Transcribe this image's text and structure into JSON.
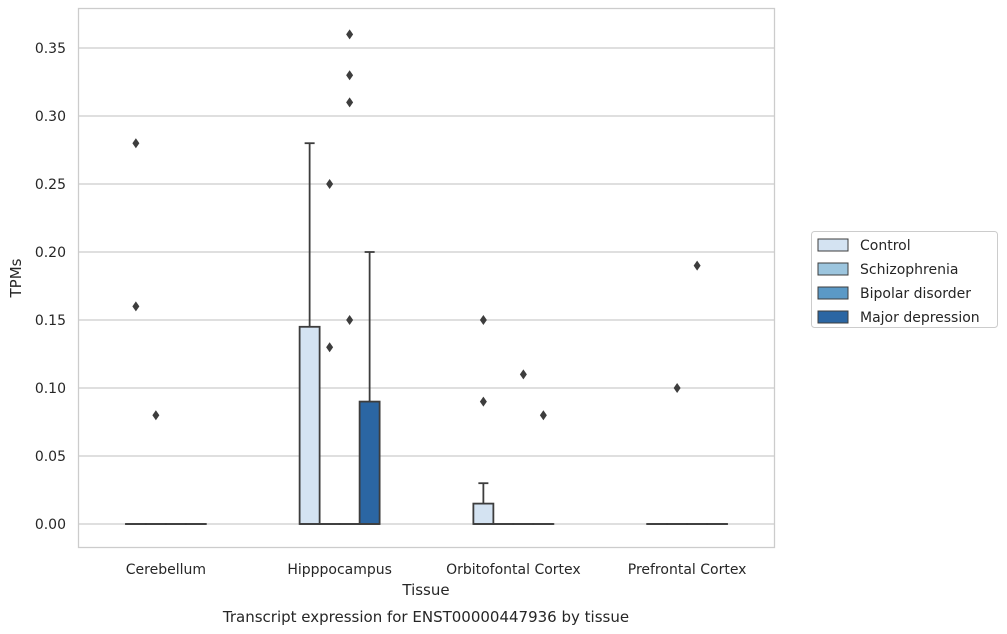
{
  "chart_data": {
    "type": "box",
    "title": "Transcript expression for ENST00000447936 by tissue",
    "xlabel": "Tissue",
    "ylabel": "TPMs",
    "ylim": [
      -0.017,
      0.378
    ],
    "yticks": [
      "0.00",
      "0.05",
      "0.10",
      "0.15",
      "0.20",
      "0.25",
      "0.30",
      "0.35"
    ],
    "grid": "horizontal",
    "legend_position": "right",
    "categories": [
      "Cerebellum",
      "Hipppocampus",
      "Orbitofontal Cortex",
      "Prefrontal Cortex"
    ],
    "series": [
      {
        "name": "Control",
        "color": "#d4e3f2",
        "boxes": [
          {
            "q1": 0,
            "median": 0,
            "q3": 0,
            "whisker_low": 0,
            "whisker_high": 0,
            "outliers": [
              0.16,
              0.28
            ]
          },
          {
            "q1": 0,
            "median": 0,
            "q3": 0.145,
            "whisker_low": 0,
            "whisker_high": 0.28,
            "outliers": []
          },
          {
            "q1": 0,
            "median": 0,
            "q3": 0.015,
            "whisker_low": 0,
            "whisker_high": 0.03,
            "outliers": [
              0.09,
              0.15
            ]
          },
          {
            "q1": 0,
            "median": 0,
            "q3": 0,
            "whisker_low": 0,
            "whisker_high": 0,
            "outliers": []
          }
        ]
      },
      {
        "name": "Schizophrenia",
        "color": "#9cc5de",
        "boxes": [
          {
            "q1": 0,
            "median": 0,
            "q3": 0,
            "whisker_low": 0,
            "whisker_high": 0,
            "outliers": [
              0.08
            ]
          },
          {
            "q1": 0,
            "median": 0,
            "q3": 0,
            "whisker_low": 0,
            "whisker_high": 0,
            "outliers": [
              0.13,
              0.25
            ]
          },
          {
            "q1": 0,
            "median": 0,
            "q3": 0,
            "whisker_low": 0,
            "whisker_high": 0,
            "outliers": []
          },
          {
            "q1": 0,
            "median": 0,
            "q3": 0,
            "whisker_low": 0,
            "whisker_high": 0,
            "outliers": [
              0.1
            ]
          }
        ]
      },
      {
        "name": "Bipolar disorder",
        "color": "#5b99c6",
        "boxes": [
          {
            "q1": 0,
            "median": 0,
            "q3": 0,
            "whisker_low": 0,
            "whisker_high": 0,
            "outliers": []
          },
          {
            "q1": 0,
            "median": 0,
            "q3": 0,
            "whisker_low": 0,
            "whisker_high": 0,
            "outliers": [
              0.15,
              0.31,
              0.33,
              0.36
            ]
          },
          {
            "q1": 0,
            "median": 0,
            "q3": 0,
            "whisker_low": 0,
            "whisker_high": 0,
            "outliers": [
              0.11
            ]
          },
          {
            "q1": 0,
            "median": 0,
            "q3": 0,
            "whisker_low": 0,
            "whisker_high": 0,
            "outliers": [
              0.19
            ]
          }
        ]
      },
      {
        "name": "Major depression",
        "color": "#2b66a3",
        "boxes": [
          {
            "q1": 0,
            "median": 0,
            "q3": 0,
            "whisker_low": 0,
            "whisker_high": 0,
            "outliers": []
          },
          {
            "q1": 0,
            "median": 0,
            "q3": 0.09,
            "whisker_low": 0,
            "whisker_high": 0.2,
            "outliers": []
          },
          {
            "q1": 0,
            "median": 0,
            "q3": 0,
            "whisker_low": 0,
            "whisker_high": 0,
            "outliers": [
              0.08
            ]
          },
          {
            "q1": 0,
            "median": 0,
            "q3": 0,
            "whisker_low": 0,
            "whisker_high": 0,
            "outliers": []
          }
        ]
      }
    ]
  }
}
